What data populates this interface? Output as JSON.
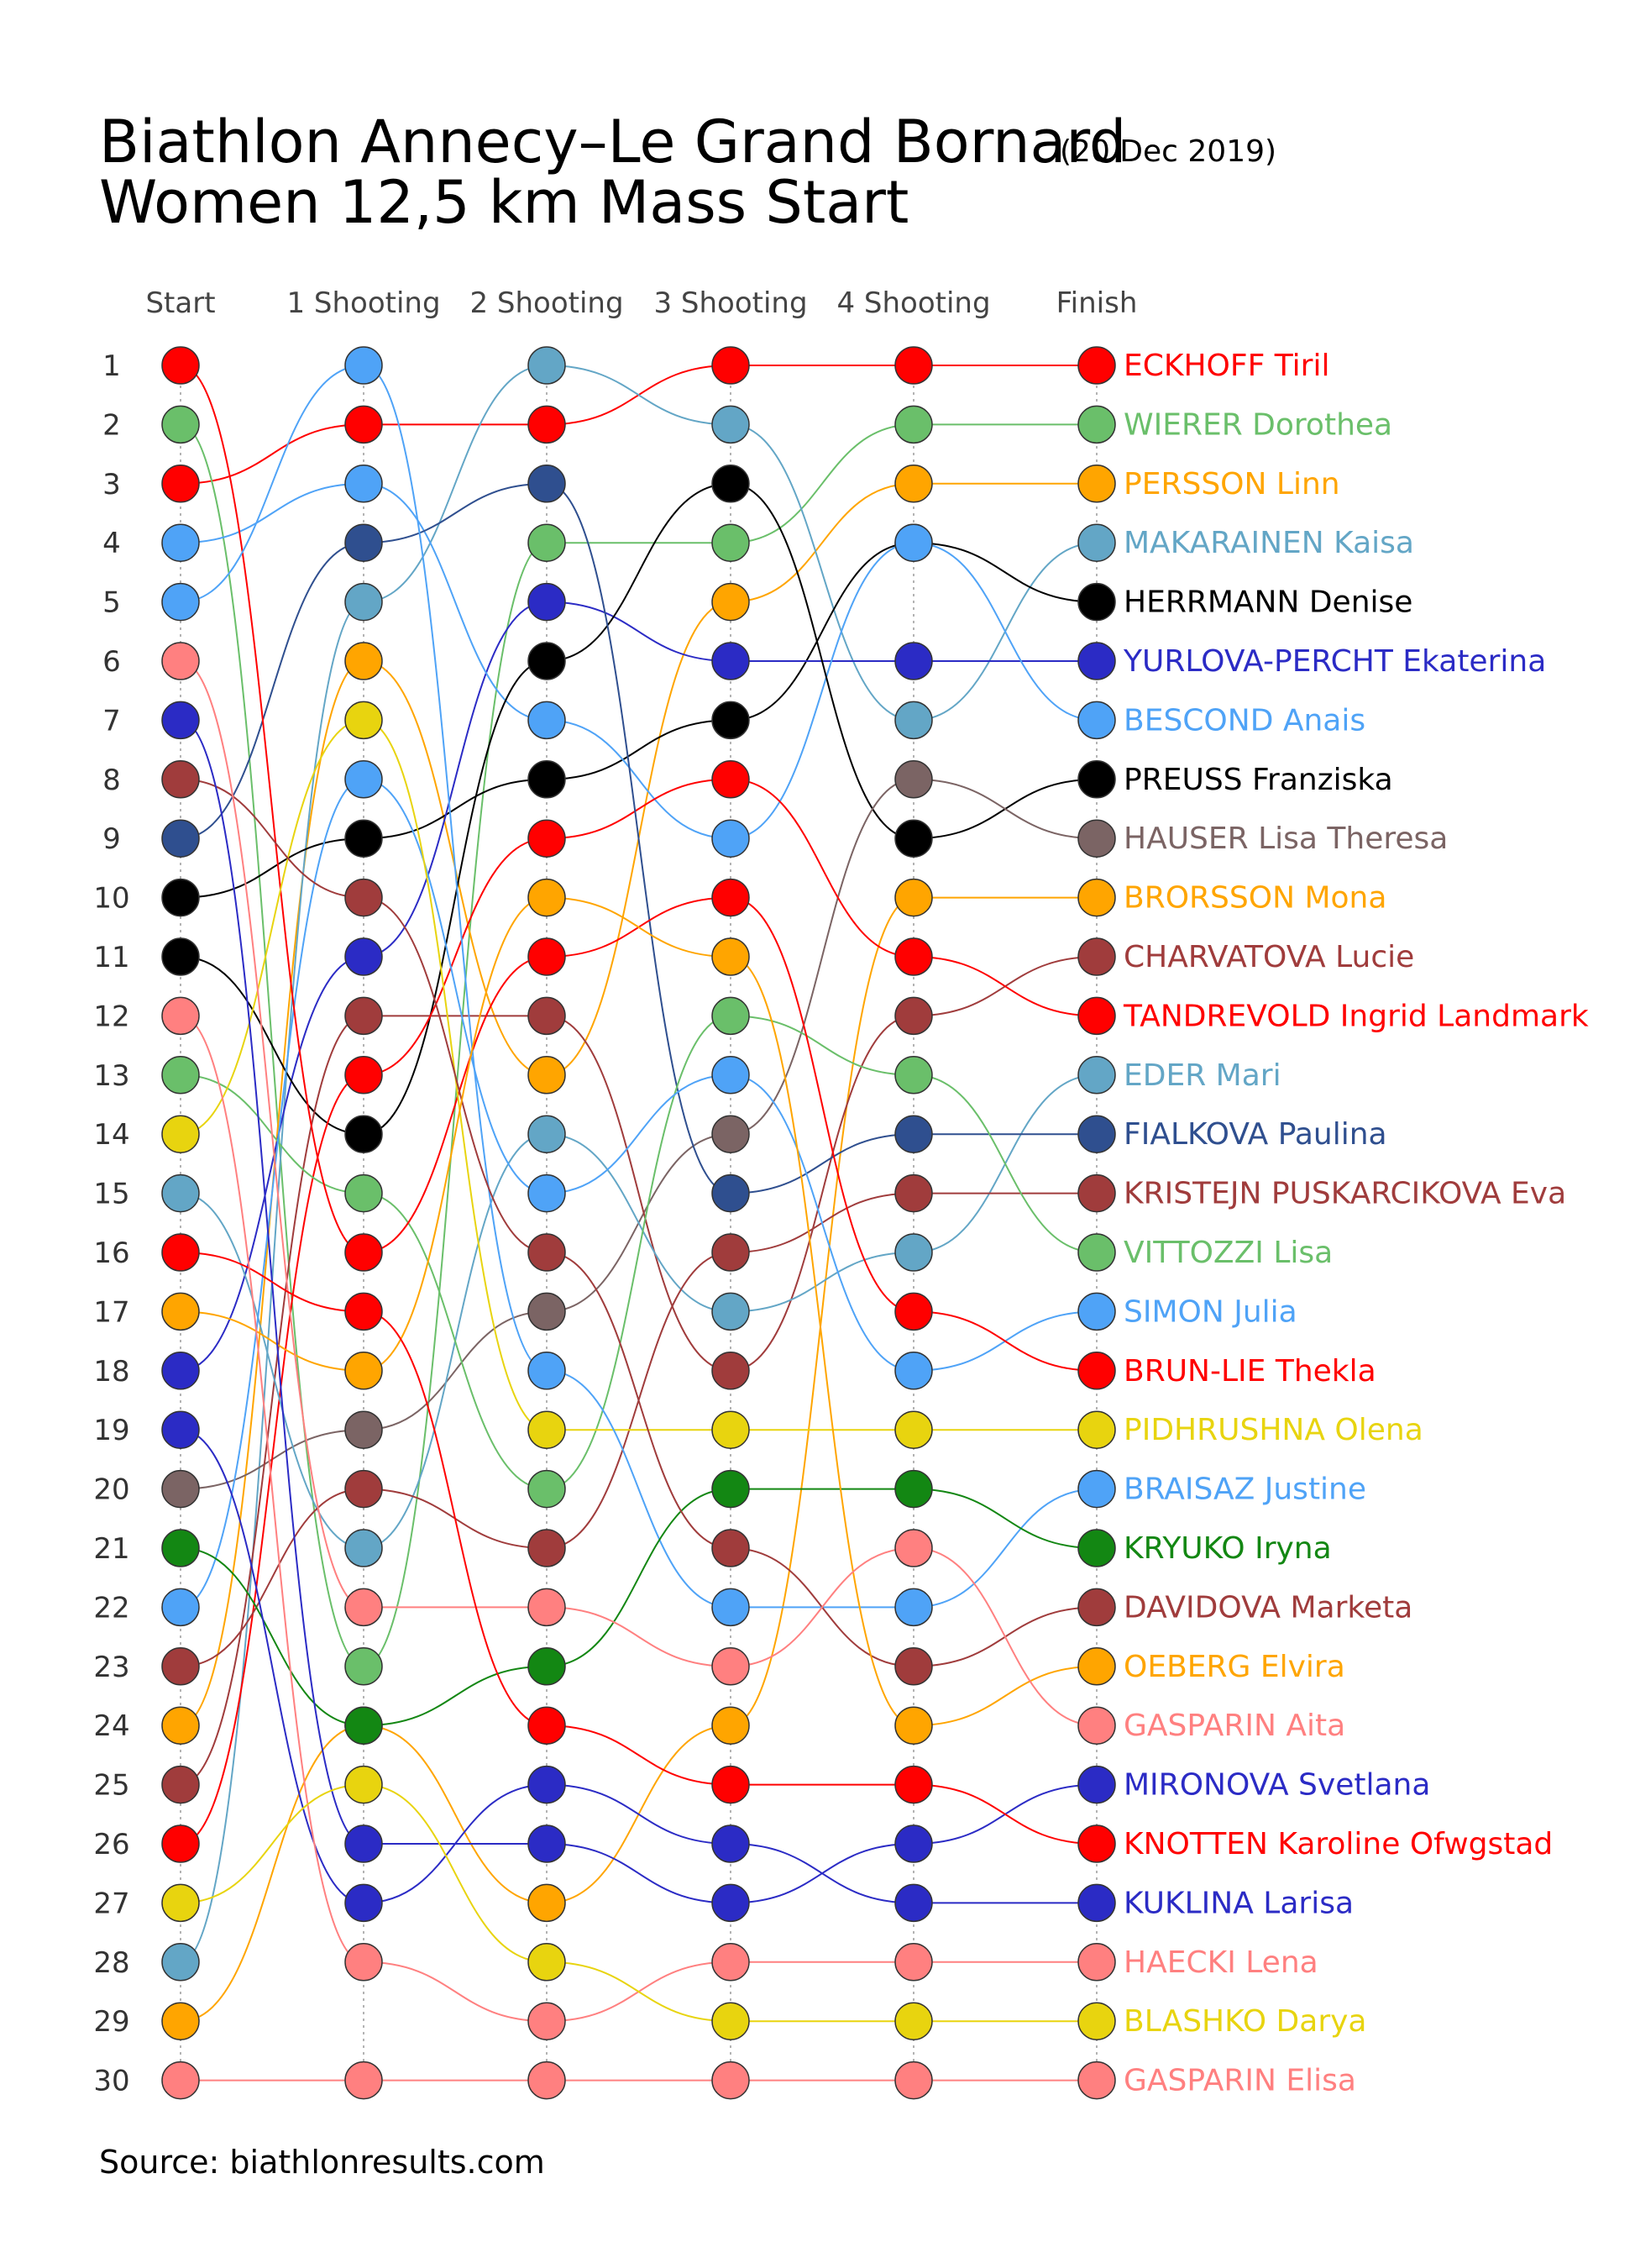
{
  "title_line1": "Biathlon Annecy–Le Grand Bornard",
  "title_line2": "Women 12,5 km Mass Start",
  "subtitle": "(20 Dec 2019)",
  "source": "Source: biathlonresults.com",
  "chart_data": {
    "type": "line",
    "stages": [
      "Start",
      "1 Shooting",
      "2 Shooting",
      "3 Shooting",
      "4 Shooting",
      "Finish"
    ],
    "y_ticks": [
      "1",
      "2",
      "3",
      "4",
      "5",
      "6",
      "7",
      "8",
      "9",
      "10",
      "11",
      "12",
      "13",
      "14",
      "15",
      "16",
      "17",
      "18",
      "19",
      "20",
      "21",
      "22",
      "23",
      "24",
      "25",
      "26",
      "27",
      "28",
      "29",
      "30"
    ],
    "y_axis": "rank (1 at top)",
    "series": [
      {
        "name": "ECKHOFF Tiril",
        "color": "#ff0000",
        "ranks": [
          3,
          2,
          2,
          1,
          1,
          1
        ]
      },
      {
        "name": "WIERER Dorothea",
        "color": "#6abf6a",
        "ranks": [
          2,
          23,
          4,
          4,
          2,
          2
        ]
      },
      {
        "name": "PERSSON Linn",
        "color": "#ffa500",
        "ranks": [
          24,
          6,
          13,
          5,
          3,
          3
        ]
      },
      {
        "name": "MAKARAINEN Kaisa",
        "color": "#63a6c6",
        "ranks": [
          28,
          5,
          1,
          2,
          7,
          4
        ]
      },
      {
        "name": "HERRMANN Denise",
        "color": "#000000",
        "ranks": [
          10,
          9,
          8,
          7,
          4,
          5
        ]
      },
      {
        "name": "YURLOVA-PERCHT Ekaterina",
        "color": "#2b2bc5",
        "ranks": [
          18,
          11,
          5,
          6,
          6,
          6
        ]
      },
      {
        "name": "BESCOND Anais",
        "color": "#4fa3f7",
        "ranks": [
          4,
          3,
          7,
          9,
          4,
          7
        ]
      },
      {
        "name": "PREUSS Franziska",
        "color": "#000000",
        "ranks": [
          11,
          14,
          6,
          3,
          9,
          8
        ]
      },
      {
        "name": "HAUSER Lisa Theresa",
        "color": "#7b6464",
        "ranks": [
          20,
          19,
          17,
          14,
          8,
          9
        ]
      },
      {
        "name": "BRORSSON Mona",
        "color": "#ffa500",
        "ranks": [
          29,
          24,
          27,
          24,
          10,
          10
        ]
      },
      {
        "name": "CHARVATOVA Lucie",
        "color": "#a03c3c",
        "ranks": [
          25,
          12,
          12,
          18,
          12,
          11
        ]
      },
      {
        "name": "TANDREVOLD Ingrid Landmark",
        "color": "#ff0000",
        "ranks": [
          26,
          13,
          9,
          8,
          11,
          12
        ]
      },
      {
        "name": "EDER Mari",
        "color": "#63a6c6",
        "ranks": [
          15,
          21,
          14,
          17,
          16,
          13
        ]
      },
      {
        "name": "FIALKOVA Paulina",
        "color": "#2f4f8f",
        "ranks": [
          9,
          4,
          3,
          15,
          14,
          14
        ]
      },
      {
        "name": "KRISTEJN PUSKARCIKOVA Eva",
        "color": "#a03c3c",
        "ranks": [
          23,
          20,
          21,
          16,
          15,
          15
        ]
      },
      {
        "name": "VITTOZZI Lisa",
        "color": "#6abf6a",
        "ranks": [
          13,
          15,
          20,
          12,
          13,
          16
        ]
      },
      {
        "name": "SIMON Julia",
        "color": "#4fa3f7",
        "ranks": [
          22,
          8,
          15,
          13,
          18,
          17
        ]
      },
      {
        "name": "BRUN-LIE Thekla",
        "color": "#ff0000",
        "ranks": [
          1,
          16,
          11,
          10,
          17,
          18
        ]
      },
      {
        "name": "PIDHRUSHNA Olena",
        "color": "#e8d40f",
        "ranks": [
          14,
          7,
          19,
          19,
          19,
          19
        ]
      },
      {
        "name": "BRAISAZ Justine",
        "color": "#4fa3f7",
        "ranks": [
          5,
          1,
          18,
          22,
          22,
          20
        ]
      },
      {
        "name": "KRYUKO Iryna",
        "color": "#138713",
        "ranks": [
          21,
          24,
          23,
          20,
          20,
          21
        ]
      },
      {
        "name": "DAVIDOVA Marketa",
        "color": "#a03c3c",
        "ranks": [
          8,
          10,
          16,
          21,
          23,
          22
        ]
      },
      {
        "name": "OEBERG Elvira",
        "color": "#ffa500",
        "ranks": [
          17,
          18,
          10,
          11,
          24,
          23
        ]
      },
      {
        "name": "GASPARIN Aita",
        "color": "#ff8080",
        "ranks": [
          6,
          22,
          22,
          23,
          21,
          24
        ]
      },
      {
        "name": "MIRONOVA Svetlana",
        "color": "#2b2bc5",
        "ranks": [
          7,
          26,
          26,
          27,
          26,
          25
        ]
      },
      {
        "name": "KNOTTEN Karoline Ofwgstad",
        "color": "#ff0000",
        "ranks": [
          16,
          17,
          24,
          25,
          25,
          26
        ]
      },
      {
        "name": "KUKLINA Larisa",
        "color": "#2b2bc5",
        "ranks": [
          19,
          27,
          25,
          26,
          27,
          27
        ]
      },
      {
        "name": "HAECKI Lena",
        "color": "#ff8080",
        "ranks": [
          12,
          28,
          29,
          28,
          28,
          28
        ]
      },
      {
        "name": "BLASHKO Darya",
        "color": "#e8d40f",
        "ranks": [
          27,
          25,
          28,
          29,
          29,
          29
        ]
      },
      {
        "name": "GASPARIN Elisa",
        "color": "#ff8080",
        "ranks": [
          30,
          30,
          30,
          30,
          30,
          30
        ]
      }
    ]
  }
}
